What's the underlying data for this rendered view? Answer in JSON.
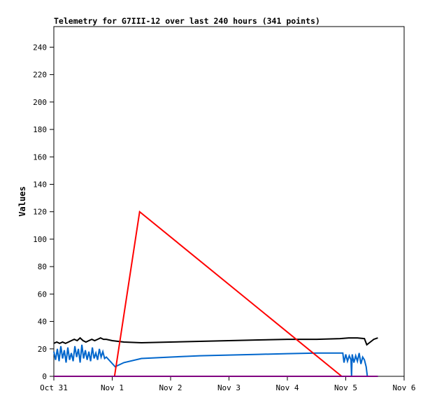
{
  "chart_data": {
    "type": "line",
    "title": "Telemetry for G7III-12 over last 240 hours (341 points)",
    "xlabel": "",
    "ylabel": "Values",
    "xlim": [
      0,
      6
    ],
    "ylim": [
      0,
      255
    ],
    "x_unit": "days since Oct 31",
    "x_ticks": [
      0,
      1,
      2,
      3,
      4,
      5,
      6
    ],
    "x_tick_labels": [
      "Oct 31",
      "Nov 1",
      "Nov 2",
      "Nov 3",
      "Nov 4",
      "Nov 5",
      "Nov 6"
    ],
    "y_ticks": [
      0,
      20,
      40,
      60,
      80,
      100,
      120,
      140,
      160,
      180,
      200,
      220,
      240
    ],
    "y_tick_labels": [
      "0",
      "20",
      "40",
      "60",
      "80",
      "100",
      "120",
      "140",
      "160",
      "180",
      "200",
      "220",
      "240"
    ],
    "grid": false,
    "series": [
      {
        "name": "black",
        "color": "#000000",
        "x": [
          0,
          0.05,
          0.1,
          0.15,
          0.2,
          0.25,
          0.3,
          0.35,
          0.4,
          0.45,
          0.5,
          0.55,
          0.6,
          0.65,
          0.7,
          0.75,
          0.8,
          0.85,
          0.9,
          1.0,
          1.2,
          1.5,
          2.0,
          2.5,
          3.0,
          3.5,
          4.0,
          4.5,
          4.9,
          5.05,
          5.2,
          5.32,
          5.36,
          5.42,
          5.48,
          5.55
        ],
        "y": [
          24,
          25,
          24,
          25,
          24,
          25,
          26,
          27,
          26,
          28,
          26,
          25,
          26,
          27,
          26,
          27,
          28,
          27,
          27,
          26,
          25,
          24.5,
          25,
          25.5,
          26,
          26.5,
          27,
          27,
          27.5,
          28,
          28,
          27.5,
          23,
          25,
          27,
          28
        ]
      },
      {
        "name": "blue",
        "color": "#0066cc",
        "x": [
          0,
          0.03,
          0.06,
          0.09,
          0.12,
          0.15,
          0.18,
          0.21,
          0.24,
          0.27,
          0.3,
          0.33,
          0.36,
          0.39,
          0.42,
          0.45,
          0.48,
          0.51,
          0.54,
          0.57,
          0.6,
          0.63,
          0.66,
          0.69,
          0.72,
          0.75,
          0.78,
          0.81,
          0.84,
          0.87,
          0.9,
          1.05,
          1.2,
          1.5,
          2.0,
          2.5,
          3.0,
          3.5,
          4.0,
          4.5,
          4.95,
          4.97,
          5.0,
          5.03,
          5.06,
          5.09,
          5.1,
          5.11,
          5.14,
          5.17,
          5.2,
          5.23,
          5.26,
          5.29,
          5.32,
          5.35,
          5.37,
          5.55
        ],
        "y": [
          18,
          12,
          20,
          11,
          22,
          13,
          19,
          10,
          21,
          12,
          17,
          11,
          22,
          14,
          20,
          10,
          23,
          13,
          19,
          12,
          18,
          11,
          21,
          13,
          17,
          12,
          20,
          14,
          18,
          13,
          14,
          7,
          10,
          13,
          14,
          15,
          15.5,
          16,
          16.5,
          17,
          17,
          10,
          16,
          11,
          15,
          12,
          0,
          16,
          10,
          15,
          11,
          17,
          9,
          14,
          12,
          7,
          0,
          0
        ]
      },
      {
        "name": "red",
        "color": "#ff0000",
        "x": [
          1.04,
          1.47,
          4.93
        ],
        "y": [
          0,
          120,
          0
        ]
      },
      {
        "name": "purple",
        "color": "#800080",
        "x": [
          0,
          5.55
        ],
        "y": [
          0,
          0
        ]
      }
    ]
  }
}
